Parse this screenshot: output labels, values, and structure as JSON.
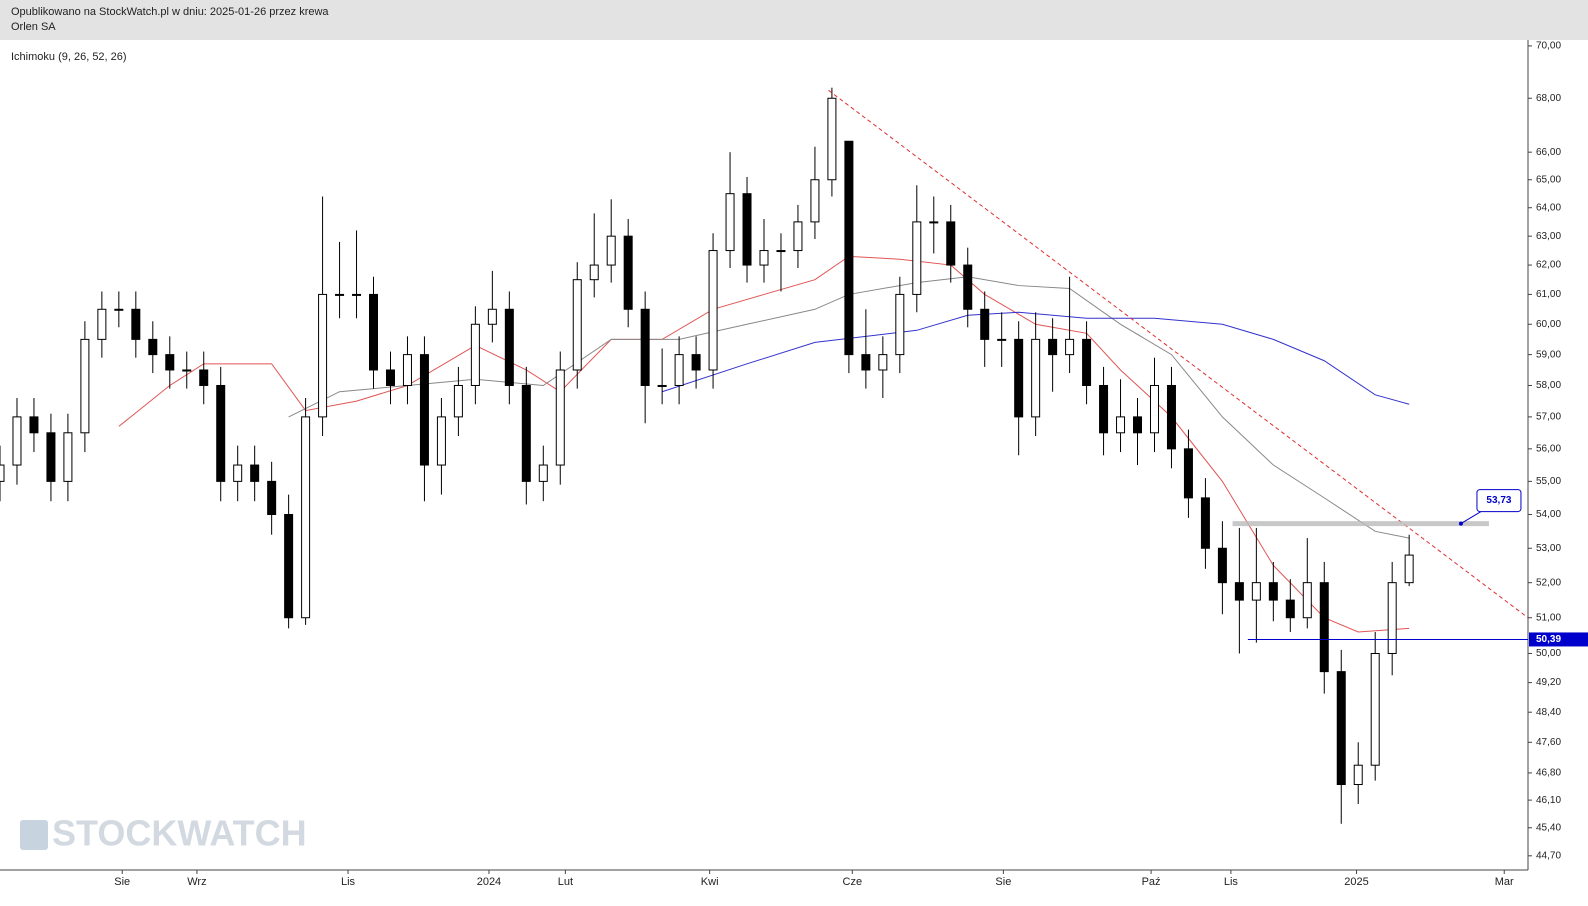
{
  "chart_data": {
    "type": "candlestick",
    "subtitle": "Opublikowano na StockWatch.pl w dniu: 2025-01-26 przez krewa",
    "title": "Orlen SA",
    "indicator": "Ichimoku (9, 26, 52, 26)",
    "watermark": "STOCKWATCH",
    "log_scale": true,
    "up_color": "#ffffff",
    "down_color": "#000000",
    "wick_color": "#000000",
    "xlim": [
      0,
      90
    ],
    "xticks": [
      {
        "value": 7.2,
        "label": "Sie"
      },
      {
        "value": 11.6,
        "label": "Wrz"
      },
      {
        "value": 20.5,
        "label": "Lis"
      },
      {
        "value": 28.8,
        "label": "2024"
      },
      {
        "value": 33.3,
        "label": "Lut"
      },
      {
        "value": 41.8,
        "label": "Kwi"
      },
      {
        "value": 50.2,
        "label": "Cze"
      },
      {
        "value": 59.1,
        "label": "Sie"
      },
      {
        "value": 67.8,
        "label": "Paź"
      },
      {
        "value": 72.5,
        "label": "Lis"
      },
      {
        "value": 79.9,
        "label": "2025"
      },
      {
        "value": 88.6,
        "label": "Mar"
      }
    ],
    "ylim": [
      44.35,
      70.23
    ],
    "yticks": [
      {
        "value": 70,
        "label": "70,00"
      },
      {
        "value": 68,
        "label": "68,00"
      },
      {
        "value": 66,
        "label": "66,00"
      },
      {
        "value": 65,
        "label": "65,00"
      },
      {
        "value": 64,
        "label": "64,00"
      },
      {
        "value": 63,
        "label": "63,00"
      },
      {
        "value": 62,
        "label": "62,00"
      },
      {
        "value": 61,
        "label": "61,00"
      },
      {
        "value": 60,
        "label": "60,00"
      },
      {
        "value": 59,
        "label": "59,00"
      },
      {
        "value": 58,
        "label": "58,00"
      },
      {
        "value": 57,
        "label": "57,00"
      },
      {
        "value": 56,
        "label": "56,00"
      },
      {
        "value": 55,
        "label": "55,00"
      },
      {
        "value": 54,
        "label": "54,00"
      },
      {
        "value": 53,
        "label": "53,00"
      },
      {
        "value": 52,
        "label": "52,00"
      },
      {
        "value": 51,
        "label": "51,00"
      },
      {
        "value": 50,
        "label": "50,00"
      },
      {
        "value": 49.2,
        "label": "49,20"
      },
      {
        "value": 48.4,
        "label": "48,40"
      },
      {
        "value": 47.6,
        "label": "47,60"
      },
      {
        "value": 46.8,
        "label": "46,80"
      },
      {
        "value": 46.1,
        "label": "46,10"
      },
      {
        "value": 45.4,
        "label": "45,40"
      },
      {
        "value": 44.7,
        "label": "44,70"
      }
    ],
    "x": [
      0,
      1,
      2,
      3,
      4,
      5,
      6,
      7,
      8,
      9,
      10,
      11,
      12,
      13,
      14,
      15,
      16,
      17,
      18,
      19,
      20,
      21,
      22,
      23,
      24,
      25,
      26,
      27,
      28,
      29,
      30,
      31,
      32,
      33,
      34,
      35,
      36,
      37,
      38,
      39,
      40,
      41,
      42,
      43,
      44,
      45,
      46,
      47,
      48,
      49,
      50,
      51,
      52,
      53,
      54,
      55,
      56,
      57,
      58,
      59,
      60,
      61,
      62,
      63,
      64,
      65,
      66,
      67,
      68,
      69,
      70,
      71,
      72,
      73,
      74,
      75,
      76,
      77,
      78,
      79,
      80,
      81,
      82,
      83
    ],
    "open": [
      55,
      55.5,
      57,
      56.5,
      55,
      56.5,
      59.5,
      60.5,
      60.5,
      59.5,
      59,
      58.5,
      58.5,
      58,
      55,
      55.5,
      55,
      54,
      51,
      57,
      61,
      61,
      61,
      58.5,
      58,
      59,
      55.5,
      57,
      58,
      60,
      60.5,
      58,
      55,
      55.5,
      58.5,
      61.5,
      62,
      63,
      60.5,
      58,
      58,
      59,
      58.5,
      62.5,
      64.5,
      62,
      62.5,
      62.5,
      63.5,
      65,
      66.4,
      59,
      58.5,
      59,
      61,
      63.5,
      63.5,
      62,
      60.5,
      59.5,
      59.5,
      57,
      59.5,
      59,
      59.5,
      58,
      56.5,
      57,
      56.5,
      58,
      56,
      54.5,
      53,
      52,
      51.5,
      52,
      51.5,
      51,
      52,
      49.5,
      46.5,
      47,
      50,
      52
    ],
    "high": [
      56.1,
      57.6,
      57.6,
      57.1,
      57.1,
      60.1,
      61.1,
      61.1,
      61.1,
      60.1,
      59.6,
      59.1,
      59.1,
      58.6,
      56.1,
      56.1,
      55.6,
      54.6,
      57.6,
      64.4,
      62.8,
      63.2,
      61.6,
      59.1,
      59.6,
      59.6,
      57.6,
      58.6,
      60.6,
      61.8,
      61.1,
      58.6,
      56.1,
      59.1,
      62.1,
      63.8,
      64.3,
      63.6,
      61.1,
      59.2,
      59.6,
      59.6,
      63.1,
      66,
      65.1,
      63.6,
      63.1,
      64.1,
      66.2,
      68.4,
      66.4,
      60.5,
      59.6,
      61.6,
      64.8,
      64.4,
      64.1,
      62.6,
      61.1,
      60.4,
      60.1,
      60.4,
      60.2,
      61.6,
      60.1,
      58.6,
      58.2,
      57.6,
      58.9,
      58.6,
      56.6,
      55.1,
      53.8,
      53.6,
      53.6,
      52.6,
      52.1,
      53.3,
      52.6,
      50.1,
      47.6,
      50.6,
      52.6,
      53.4
    ],
    "low": [
      54.4,
      54.9,
      55.9,
      54.4,
      54.4,
      55.9,
      58.9,
      59.9,
      58.9,
      58.4,
      57.9,
      57.9,
      57.4,
      54.4,
      54.4,
      54.4,
      53.4,
      50.7,
      50.8,
      56.4,
      60.2,
      60.2,
      57.9,
      57.4,
      57.4,
      54.4,
      54.6,
      56.4,
      57.4,
      59.4,
      57.4,
      54.3,
      54.4,
      54.9,
      57.9,
      60.9,
      61.4,
      59.9,
      56.8,
      57.4,
      57.4,
      57.9,
      57.9,
      61.9,
      61.4,
      61.4,
      61.1,
      61.9,
      62.9,
      64.4,
      58.4,
      57.9,
      57.6,
      58.4,
      60.4,
      62.4,
      61.4,
      59.9,
      58.6,
      58.6,
      55.8,
      56.4,
      57.8,
      58.4,
      57.4,
      55.8,
      55.9,
      55.5,
      55.9,
      55.4,
      53.9,
      52.4,
      51.1,
      50,
      50.3,
      50.9,
      50.6,
      50.7,
      48.9,
      45.5,
      46,
      46.6,
      49.4,
      51.9
    ],
    "close": [
      55.5,
      57,
      56.5,
      55,
      56.5,
      59.5,
      60.5,
      60.5,
      59.5,
      59,
      58.5,
      58.5,
      58,
      55,
      55.5,
      55,
      54,
      51,
      57,
      61,
      61,
      61,
      58.5,
      58,
      59,
      55.5,
      57,
      58,
      60,
      60.5,
      58,
      55,
      55.5,
      58.5,
      61.5,
      62,
      63,
      60.5,
      58,
      58,
      59,
      58.5,
      62.5,
      64.5,
      62,
      62.5,
      62.5,
      63.5,
      65,
      68,
      59,
      58.5,
      59,
      61,
      63.5,
      63.5,
      62,
      60.5,
      59.5,
      59.5,
      57,
      59.5,
      59,
      59.5,
      58,
      56.5,
      57,
      56.5,
      58,
      56,
      54.5,
      53,
      52,
      51.5,
      52,
      51.5,
      51,
      52,
      49.5,
      46.5,
      47,
      50,
      52,
      52.8
    ],
    "lines": [
      {
        "color": "#e05555",
        "x": [
          7,
          10,
          12,
          16,
          18,
          21,
          24,
          28,
          31,
          33,
          36,
          39,
          42,
          45,
          48,
          50,
          53,
          56,
          58,
          61,
          64,
          66,
          69,
          72,
          75,
          78,
          80,
          83
        ],
        "values": [
          56.7,
          58,
          58.7,
          58.7,
          57.2,
          57.5,
          58,
          59.3,
          58.5,
          57.8,
          59.5,
          59.5,
          60.5,
          61,
          61.5,
          62.3,
          62.2,
          62,
          61,
          60,
          59.7,
          58.5,
          57,
          55,
          52.5,
          51,
          50.6,
          50.7
        ]
      },
      {
        "color": "#888888",
        "x": [
          17,
          20,
          24,
          28,
          32,
          36,
          40,
          44,
          48,
          50,
          54,
          57,
          60,
          63,
          66,
          69,
          72,
          75,
          78,
          81,
          83
        ],
        "values": [
          57,
          57.8,
          58,
          58.2,
          58,
          59.5,
          59.5,
          60,
          60.5,
          61,
          61.4,
          61.6,
          61.3,
          61.2,
          60,
          59,
          57,
          55.5,
          54.5,
          53.5,
          53.3
        ]
      },
      {
        "color": "#3333cc",
        "x": [
          39,
          44,
          48,
          51,
          54,
          57,
          60,
          64,
          68,
          72,
          75,
          78,
          81,
          83
        ],
        "values": [
          57.8,
          58.7,
          59.4,
          59.6,
          59.8,
          60.3,
          60.4,
          60.2,
          60.2,
          60,
          59.5,
          58.8,
          57.7,
          57.4
        ]
      }
    ],
    "trendline": {
      "color": "#e03030",
      "x": [
        48.8,
        90
      ],
      "y": [
        68.3,
        51.0
      ]
    },
    "levels": [
      {
        "value": 53.73,
        "label": "53,73",
        "x": [
          72.6,
          87.7
        ],
        "color": "#bbbbbb"
      },
      {
        "value": 50.39,
        "label": "50,39",
        "x": [
          73.5,
          90
        ],
        "color": "#0000cc"
      }
    ]
  }
}
